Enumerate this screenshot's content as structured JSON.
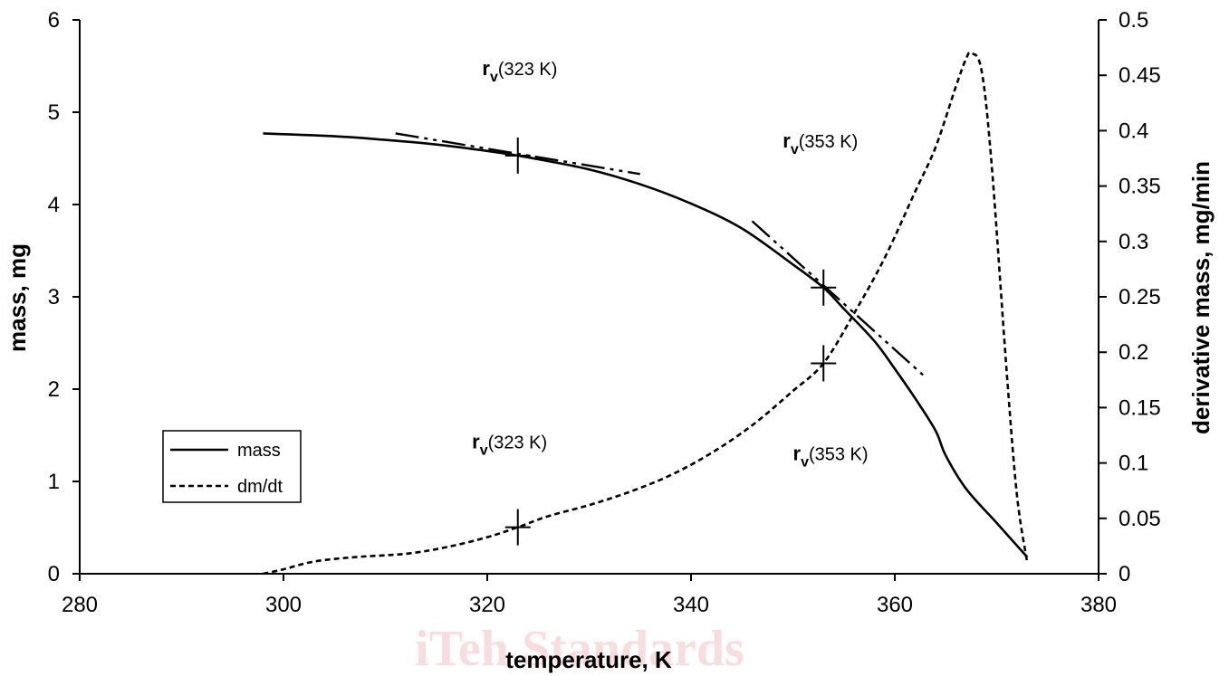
{
  "chart_data": {
    "type": "line",
    "xlabel": "temperature, K",
    "ylabel": "mass, mg",
    "y2label": "derivative mass, mg/min",
    "xlim": [
      280,
      380
    ],
    "ylim": [
      0,
      6
    ],
    "y2lim": [
      0,
      0.5
    ],
    "x_ticks": [
      "280",
      "300",
      "320",
      "340",
      "360",
      "380"
    ],
    "y_ticks": [
      "0",
      "1",
      "2",
      "3",
      "4",
      "5",
      "6"
    ],
    "y2_ticks": [
      "0",
      "0.05",
      "0.1",
      "0.15",
      "0.2",
      "0.25",
      "0.3",
      "0.35",
      "0.4",
      "0.45",
      "0.5"
    ],
    "grid": false,
    "legend_position": "bottom-left",
    "series": [
      {
        "name": "mass",
        "axis": "left",
        "style": "solid",
        "x": [
          298,
          305,
          310,
          315,
          320,
          323,
          325,
          330,
          335,
          340,
          345,
          350,
          353,
          355,
          358,
          360,
          362,
          364,
          365,
          367,
          370,
          373
        ],
        "y": [
          4.77,
          4.74,
          4.7,
          4.65,
          4.58,
          4.53,
          4.49,
          4.38,
          4.22,
          4.01,
          3.74,
          3.35,
          3.1,
          2.87,
          2.52,
          2.22,
          1.9,
          1.55,
          1.28,
          0.92,
          0.55,
          0.18
        ]
      },
      {
        "name": "dm/dt",
        "axis": "right",
        "style": "dashed",
        "x": [
          298,
          300,
          303,
          307,
          312,
          316,
          320,
          323,
          326,
          330,
          334,
          338,
          342,
          346,
          350,
          353,
          356,
          359,
          362,
          364,
          366,
          367,
          367.5,
          368.5,
          369.5,
          371,
          372,
          373
        ],
        "y": [
          0.0,
          0.004,
          0.011,
          0.015,
          0.018,
          0.024,
          0.033,
          0.042,
          0.052,
          0.062,
          0.074,
          0.089,
          0.109,
          0.134,
          0.165,
          0.19,
          0.235,
          0.285,
          0.345,
          0.385,
          0.44,
          0.465,
          0.47,
          0.455,
          0.37,
          0.18,
          0.07,
          0.01
        ]
      }
    ],
    "tangent_lines": [
      {
        "x": [
          311,
          335
        ],
        "y": [
          4.77,
          4.33
        ],
        "axis": "left",
        "style": "dash-dot"
      },
      {
        "x": [
          346,
          363
        ],
        "y": [
          3.82,
          2.13
        ],
        "axis": "left",
        "style": "dash-dot"
      }
    ],
    "markers": [
      {
        "x": 323,
        "y": 4.53,
        "axis": "left"
      },
      {
        "x": 353,
        "y": 3.1,
        "axis": "left"
      },
      {
        "x": 323,
        "y": 0.042,
        "axis": "right"
      },
      {
        "x": 353,
        "y": 0.19,
        "axis": "right"
      }
    ],
    "annotations": [
      {
        "main": "r",
        "sub": "v",
        "rest": "(323 K)",
        "x": 319.5,
        "y": 5.4,
        "axis": "left"
      },
      {
        "main": "r",
        "sub": "v",
        "rest": "(353 K)",
        "x": 349,
        "y": 4.62,
        "axis": "left"
      },
      {
        "main": "r",
        "sub": "v",
        "rest": "(323 K)",
        "x": 318.5,
        "y": 1.36,
        "axis": "left"
      },
      {
        "main": "r",
        "sub": "v",
        "rest": "(353 K)",
        "x": 350,
        "y": 1.23,
        "axis": "left"
      }
    ]
  },
  "watermark": "iTeh Standards"
}
